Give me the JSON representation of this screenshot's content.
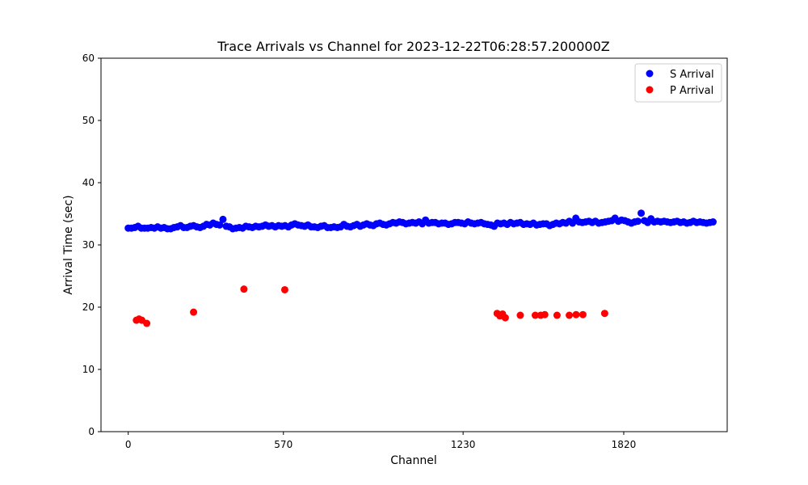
{
  "chart_data": {
    "type": "scatter",
    "title": "Trace Arrivals vs Channel for 2023-12-22T06:28:57.200000Z",
    "xlabel": "Channel",
    "ylabel": "Arrival Time (sec)",
    "xlim": [
      -100,
      2200
    ],
    "ylim": [
      0,
      60
    ],
    "xticks": [
      0,
      570,
      1230,
      1820
    ],
    "yticks": [
      0,
      10,
      20,
      30,
      40,
      50,
      60
    ],
    "grid": false,
    "legend_position": "top-right",
    "series": [
      {
        "name": "S Arrival",
        "color": "#0000ff",
        "points": [
          [
            0,
            32.7
          ],
          [
            12,
            32.7
          ],
          [
            24,
            32.8
          ],
          [
            36,
            33.0
          ],
          [
            48,
            32.7
          ],
          [
            60,
            32.7
          ],
          [
            72,
            32.7
          ],
          [
            84,
            32.8
          ],
          [
            96,
            32.7
          ],
          [
            108,
            32.9
          ],
          [
            120,
            32.7
          ],
          [
            132,
            32.8
          ],
          [
            144,
            32.6
          ],
          [
            156,
            32.6
          ],
          [
            168,
            32.8
          ],
          [
            180,
            32.9
          ],
          [
            192,
            33.1
          ],
          [
            204,
            32.8
          ],
          [
            216,
            32.8
          ],
          [
            228,
            33.0
          ],
          [
            240,
            33.1
          ],
          [
            252,
            32.9
          ],
          [
            264,
            32.8
          ],
          [
            276,
            33.0
          ],
          [
            288,
            33.3
          ],
          [
            300,
            33.2
          ],
          [
            312,
            33.5
          ],
          [
            324,
            33.3
          ],
          [
            336,
            33.2
          ],
          [
            348,
            34.1
          ],
          [
            360,
            33.0
          ],
          [
            372,
            32.9
          ],
          [
            384,
            32.6
          ],
          [
            396,
            32.7
          ],
          [
            408,
            32.8
          ],
          [
            420,
            32.7
          ],
          [
            432,
            33.0
          ],
          [
            444,
            32.9
          ],
          [
            456,
            32.8
          ],
          [
            468,
            33.0
          ],
          [
            480,
            32.9
          ],
          [
            492,
            33.0
          ],
          [
            504,
            33.2
          ],
          [
            516,
            33.0
          ],
          [
            528,
            33.1
          ],
          [
            540,
            32.9
          ],
          [
            552,
            33.1
          ],
          [
            564,
            33.0
          ],
          [
            576,
            33.1
          ],
          [
            588,
            32.9
          ],
          [
            600,
            33.2
          ],
          [
            612,
            33.4
          ],
          [
            624,
            33.2
          ],
          [
            636,
            33.1
          ],
          [
            648,
            33.0
          ],
          [
            660,
            33.2
          ],
          [
            672,
            32.9
          ],
          [
            684,
            32.9
          ],
          [
            696,
            32.8
          ],
          [
            708,
            33.0
          ],
          [
            720,
            33.1
          ],
          [
            732,
            32.8
          ],
          [
            744,
            32.8
          ],
          [
            756,
            32.9
          ],
          [
            768,
            32.8
          ],
          [
            780,
            32.9
          ],
          [
            792,
            33.3
          ],
          [
            804,
            33.0
          ],
          [
            816,
            32.9
          ],
          [
            828,
            33.1
          ],
          [
            840,
            33.3
          ],
          [
            852,
            33.0
          ],
          [
            864,
            33.2
          ],
          [
            876,
            33.4
          ],
          [
            888,
            33.2
          ],
          [
            900,
            33.1
          ],
          [
            912,
            33.4
          ],
          [
            924,
            33.5
          ],
          [
            936,
            33.3
          ],
          [
            948,
            33.2
          ],
          [
            960,
            33.4
          ],
          [
            972,
            33.6
          ],
          [
            984,
            33.5
          ],
          [
            996,
            33.7
          ],
          [
            1008,
            33.6
          ],
          [
            1020,
            33.4
          ],
          [
            1032,
            33.5
          ],
          [
            1044,
            33.6
          ],
          [
            1056,
            33.5
          ],
          [
            1068,
            33.7
          ],
          [
            1080,
            33.4
          ],
          [
            1092,
            34.0
          ],
          [
            1104,
            33.5
          ],
          [
            1116,
            33.6
          ],
          [
            1128,
            33.6
          ],
          [
            1140,
            33.4
          ],
          [
            1152,
            33.5
          ],
          [
            1164,
            33.5
          ],
          [
            1176,
            33.3
          ],
          [
            1188,
            33.4
          ],
          [
            1200,
            33.6
          ],
          [
            1212,
            33.6
          ],
          [
            1224,
            33.5
          ],
          [
            1236,
            33.4
          ],
          [
            1248,
            33.7
          ],
          [
            1260,
            33.5
          ],
          [
            1272,
            33.4
          ],
          [
            1284,
            33.5
          ],
          [
            1296,
            33.6
          ],
          [
            1308,
            33.4
          ],
          [
            1320,
            33.3
          ],
          [
            1332,
            33.2
          ],
          [
            1344,
            33.0
          ],
          [
            1356,
            33.5
          ],
          [
            1368,
            33.4
          ],
          [
            1380,
            33.5
          ],
          [
            1392,
            33.3
          ],
          [
            1404,
            33.6
          ],
          [
            1416,
            33.4
          ],
          [
            1428,
            33.5
          ],
          [
            1440,
            33.6
          ],
          [
            1452,
            33.3
          ],
          [
            1464,
            33.4
          ],
          [
            1476,
            33.3
          ],
          [
            1488,
            33.5
          ],
          [
            1500,
            33.2
          ],
          [
            1512,
            33.3
          ],
          [
            1524,
            33.4
          ],
          [
            1536,
            33.4
          ],
          [
            1548,
            33.1
          ],
          [
            1560,
            33.3
          ],
          [
            1572,
            33.5
          ],
          [
            1584,
            33.4
          ],
          [
            1596,
            33.6
          ],
          [
            1608,
            33.5
          ],
          [
            1620,
            33.8
          ],
          [
            1632,
            33.5
          ],
          [
            1644,
            34.3
          ],
          [
            1656,
            33.7
          ],
          [
            1668,
            33.6
          ],
          [
            1680,
            33.7
          ],
          [
            1692,
            33.8
          ],
          [
            1704,
            33.6
          ],
          [
            1716,
            33.8
          ],
          [
            1728,
            33.5
          ],
          [
            1740,
            33.6
          ],
          [
            1752,
            33.7
          ],
          [
            1764,
            33.8
          ],
          [
            1776,
            33.9
          ],
          [
            1788,
            34.3
          ],
          [
            1800,
            33.8
          ],
          [
            1812,
            34.0
          ],
          [
            1824,
            33.9
          ],
          [
            1836,
            33.7
          ],
          [
            1848,
            33.5
          ],
          [
            1860,
            33.7
          ],
          [
            1872,
            33.8
          ],
          [
            1884,
            35.1
          ],
          [
            1896,
            33.9
          ],
          [
            1908,
            33.6
          ],
          [
            1920,
            34.2
          ],
          [
            1932,
            33.7
          ],
          [
            1944,
            33.8
          ],
          [
            1956,
            33.7
          ],
          [
            1968,
            33.8
          ],
          [
            1980,
            33.7
          ],
          [
            1992,
            33.6
          ],
          [
            2004,
            33.7
          ],
          [
            2016,
            33.8
          ],
          [
            2028,
            33.6
          ],
          [
            2040,
            33.7
          ],
          [
            2052,
            33.5
          ],
          [
            2064,
            33.6
          ],
          [
            2076,
            33.8
          ],
          [
            2088,
            33.6
          ],
          [
            2100,
            33.7
          ],
          [
            2112,
            33.6
          ],
          [
            2124,
            33.5
          ],
          [
            2136,
            33.6
          ],
          [
            2148,
            33.7
          ]
        ]
      },
      {
        "name": "P Arrival",
        "color": "#ff0000",
        "points": [
          [
            30,
            17.9
          ],
          [
            40,
            18.1
          ],
          [
            50,
            17.9
          ],
          [
            68,
            17.4
          ],
          [
            240,
            19.2
          ],
          [
            425,
            22.9
          ],
          [
            575,
            22.8
          ],
          [
            1355,
            19.0
          ],
          [
            1365,
            18.6
          ],
          [
            1375,
            18.9
          ],
          [
            1385,
            18.3
          ],
          [
            1440,
            18.7
          ],
          [
            1495,
            18.7
          ],
          [
            1515,
            18.7
          ],
          [
            1530,
            18.8
          ],
          [
            1575,
            18.7
          ],
          [
            1620,
            18.7
          ],
          [
            1645,
            18.8
          ],
          [
            1670,
            18.8
          ],
          [
            1750,
            19.0
          ]
        ]
      }
    ]
  }
}
